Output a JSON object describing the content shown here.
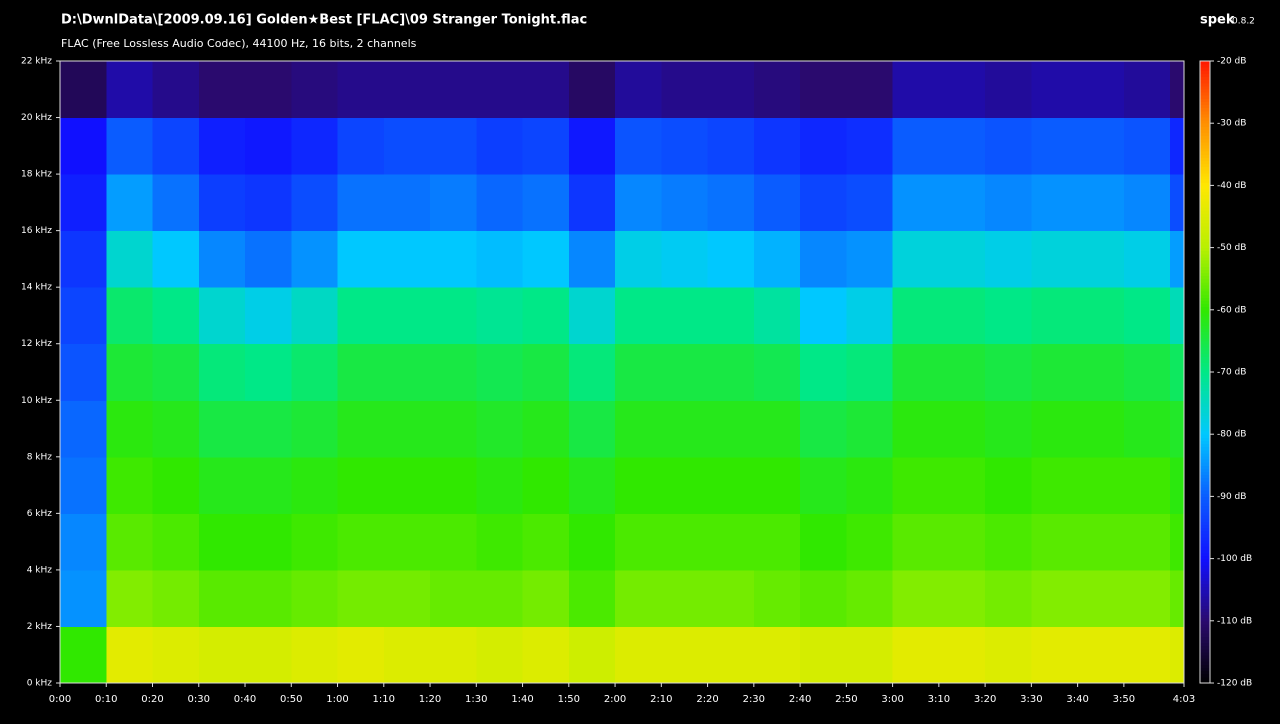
{
  "app": {
    "name": "spek",
    "version": "0.8.2"
  },
  "chart_data": {
    "type": "spectrogram",
    "title": "D:\\DwnlData\\[2009.09.16] Golden★Best [FLAC]\\09 Stranger Tonight.flac",
    "subtitle": "FLAC (Free Lossless Audio Codec), 44100 Hz, 16 bits, 2 channels",
    "xlim": [
      0,
      243
    ],
    "ylim": [
      0,
      22
    ],
    "zlim": [
      -120,
      -20
    ],
    "xticks": [
      {
        "value": 0,
        "label": "0:00"
      },
      {
        "value": 10,
        "label": "0:10"
      },
      {
        "value": 20,
        "label": "0:20"
      },
      {
        "value": 30,
        "label": "0:30"
      },
      {
        "value": 40,
        "label": "0:40"
      },
      {
        "value": 50,
        "label": "0:50"
      },
      {
        "value": 60,
        "label": "1:00"
      },
      {
        "value": 70,
        "label": "1:10"
      },
      {
        "value": 80,
        "label": "1:20"
      },
      {
        "value": 90,
        "label": "1:30"
      },
      {
        "value": 100,
        "label": "1:40"
      },
      {
        "value": 110,
        "label": "1:50"
      },
      {
        "value": 120,
        "label": "2:00"
      },
      {
        "value": 130,
        "label": "2:10"
      },
      {
        "value": 140,
        "label": "2:20"
      },
      {
        "value": 150,
        "label": "2:30"
      },
      {
        "value": 160,
        "label": "2:40"
      },
      {
        "value": 170,
        "label": "2:50"
      },
      {
        "value": 180,
        "label": "3:00"
      },
      {
        "value": 190,
        "label": "3:10"
      },
      {
        "value": 200,
        "label": "3:20"
      },
      {
        "value": 210,
        "label": "3:30"
      },
      {
        "value": 220,
        "label": "3:40"
      },
      {
        "value": 230,
        "label": "3:50"
      },
      {
        "value": 243,
        "label": "4:03"
      }
    ],
    "yticks": [
      {
        "value": 0,
        "label": "0 kHz"
      },
      {
        "value": 2,
        "label": "2 kHz"
      },
      {
        "value": 4,
        "label": "4 kHz"
      },
      {
        "value": 6,
        "label": "6 kHz"
      },
      {
        "value": 8,
        "label": "8 kHz"
      },
      {
        "value": 10,
        "label": "10 kHz"
      },
      {
        "value": 12,
        "label": "12 kHz"
      },
      {
        "value": 14,
        "label": "14 kHz"
      },
      {
        "value": 16,
        "label": "16 kHz"
      },
      {
        "value": 18,
        "label": "18 kHz"
      },
      {
        "value": 20,
        "label": "20 kHz"
      },
      {
        "value": 22,
        "label": "22 kHz"
      }
    ],
    "zticks": [
      {
        "value": -20,
        "label": "-20 dB"
      },
      {
        "value": -30,
        "label": "-30 dB"
      },
      {
        "value": -40,
        "label": "-40 dB"
      },
      {
        "value": -50,
        "label": "-50 dB"
      },
      {
        "value": -60,
        "label": "-60 dB"
      },
      {
        "value": -70,
        "label": "-70 dB"
      },
      {
        "value": -80,
        "label": "-80 dB"
      },
      {
        "value": -90,
        "label": "-90 dB"
      },
      {
        "value": -100,
        "label": "-100 dB"
      },
      {
        "value": -110,
        "label": "-110 dB"
      },
      {
        "value": -120,
        "label": "-120 dB"
      }
    ],
    "colormap": [
      {
        "value": -120,
        "color": "#000000"
      },
      {
        "value": -110,
        "color": "#2a0a6e"
      },
      {
        "value": -100,
        "color": "#1010ff"
      },
      {
        "value": -90,
        "color": "#0a5cff"
      },
      {
        "value": -80,
        "color": "#00c8ff"
      },
      {
        "value": -70,
        "color": "#00e887"
      },
      {
        "value": -60,
        "color": "#30e800"
      },
      {
        "value": -50,
        "color": "#b8f000"
      },
      {
        "value": -40,
        "color": "#ffe800"
      },
      {
        "value": -30,
        "color": "#ff9000"
      },
      {
        "value": -20,
        "color": "#ff1800"
      }
    ],
    "time_bins": [
      0,
      10,
      20,
      30,
      40,
      50,
      60,
      70,
      80,
      90,
      100,
      110,
      120,
      130,
      140,
      150,
      160,
      170,
      180,
      190,
      200,
      210,
      220,
      230,
      240,
      243
    ],
    "freq_bins": [
      0,
      2,
      4,
      6,
      8,
      10,
      12,
      14,
      16,
      18,
      20,
      22
    ],
    "values": [
      [
        -60,
        -44,
        -45,
        -46,
        -46,
        -45,
        -44,
        -45,
        -45,
        -46,
        -45,
        -47,
        -45,
        -45,
        -45,
        -45,
        -46,
        -46,
        -44,
        -44,
        -45,
        -44,
        -44,
        -44,
        -45
      ],
      [
        -85,
        -54,
        -55,
        -57,
        -57,
        -56,
        -55,
        -55,
        -56,
        -56,
        -55,
        -58,
        -55,
        -55,
        -55,
        -56,
        -57,
        -56,
        -54,
        -54,
        -55,
        -54,
        -54,
        -54,
        -56
      ],
      [
        -86,
        -57,
        -58,
        -60,
        -60,
        -59,
        -58,
        -58,
        -58,
        -59,
        -58,
        -60,
        -58,
        -58,
        -58,
        -58,
        -60,
        -59,
        -57,
        -57,
        -58,
        -57,
        -57,
        -57,
        -59
      ],
      [
        -88,
        -59,
        -60,
        -62,
        -62,
        -61,
        -60,
        -60,
        -60,
        -61,
        -60,
        -62,
        -60,
        -60,
        -60,
        -60,
        -62,
        -61,
        -59,
        -59,
        -60,
        -59,
        -59,
        -59,
        -61
      ],
      [
        -89,
        -61,
        -62,
        -65,
        -65,
        -64,
        -62,
        -62,
        -62,
        -63,
        -62,
        -65,
        -62,
        -62,
        -62,
        -62,
        -65,
        -64,
        -61,
        -61,
        -62,
        -61,
        -61,
        -62,
        -63
      ],
      [
        -91,
        -64,
        -65,
        -69,
        -70,
        -68,
        -65,
        -65,
        -65,
        -66,
        -65,
        -69,
        -65,
        -65,
        -65,
        -66,
        -70,
        -69,
        -64,
        -64,
        -65,
        -64,
        -64,
        -65,
        -67
      ],
      [
        -93,
        -68,
        -70,
        -76,
        -78,
        -75,
        -70,
        -70,
        -70,
        -71,
        -70,
        -76,
        -70,
        -70,
        -70,
        -72,
        -80,
        -78,
        -69,
        -69,
        -70,
        -69,
        -69,
        -70,
        -74
      ],
      [
        -95,
        -76,
        -80,
        -86,
        -88,
        -85,
        -80,
        -80,
        -80,
        -81,
        -80,
        -86,
        -78,
        -79,
        -80,
        -82,
        -86,
        -85,
        -77,
        -77,
        -78,
        -77,
        -77,
        -78,
        -84
      ],
      [
        -98,
        -84,
        -88,
        -94,
        -95,
        -92,
        -88,
        -88,
        -87,
        -89,
        -88,
        -95,
        -86,
        -87,
        -88,
        -90,
        -93,
        -92,
        -85,
        -85,
        -86,
        -85,
        -85,
        -86,
        -92
      ],
      [
        -100,
        -90,
        -93,
        -98,
        -99,
        -97,
        -93,
        -92,
        -92,
        -94,
        -93,
        -99,
        -91,
        -92,
        -93,
        -95,
        -97,
        -96,
        -90,
        -90,
        -91,
        -90,
        -90,
        -91,
        -97
      ],
      [
        -112,
        -106,
        -108,
        -110,
        -110,
        -109,
        -108,
        -108,
        -108,
        -108,
        -108,
        -111,
        -107,
        -108,
        -108,
        -109,
        -110,
        -110,
        -106,
        -106,
        -107,
        -106,
        -106,
        -107,
        -110
      ]
    ]
  }
}
